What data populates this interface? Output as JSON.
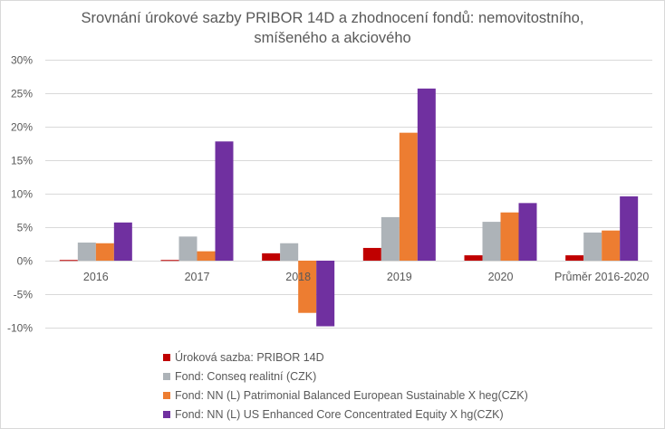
{
  "chart_data": {
    "type": "bar",
    "title": "Srovnání úrokové sazby PRIBOR 14D a zhodnocení fondů: nemovitostního,",
    "title_line2": "smíšeného a akciového",
    "xlabel": "",
    "ylabel": "",
    "ylim": [
      -10,
      30
    ],
    "yticks": [
      30,
      25,
      20,
      15,
      10,
      5,
      0,
      -5,
      -10
    ],
    "ytick_labels": [
      "30%",
      "25%",
      "20%",
      "15%",
      "10%",
      "5%",
      "0%",
      "-5%",
      "-10%"
    ],
    "grid": true,
    "legend_position": "bottom",
    "categories": [
      "2016",
      "2017",
      "2018",
      "2019",
      "2020",
      "Průměr 2016-2020"
    ],
    "series": [
      {
        "name": "Úroková sazba: PRIBOR 14D",
        "color": "#c00000",
        "values": [
          0.1,
          0.1,
          1.1,
          1.9,
          0.8,
          0.8
        ]
      },
      {
        "name": "Fond: Conseq realitní (CZK)",
        "color": "#adb3b8",
        "values": [
          2.7,
          3.6,
          2.6,
          6.5,
          5.8,
          4.2
        ]
      },
      {
        "name": "Fond: NN (L) Patrimonial Balanced European Sustainable X heg(CZK)",
        "color": "#ed7d31",
        "values": [
          2.6,
          1.4,
          -7.8,
          19.1,
          7.2,
          4.5
        ]
      },
      {
        "name": "Fond: NN (L) US Enhanced Core Concentrated Equity X hg(CZK)",
        "color": "#7030a0",
        "values": [
          5.7,
          17.8,
          -9.8,
          25.7,
          8.6,
          9.6
        ]
      }
    ]
  }
}
